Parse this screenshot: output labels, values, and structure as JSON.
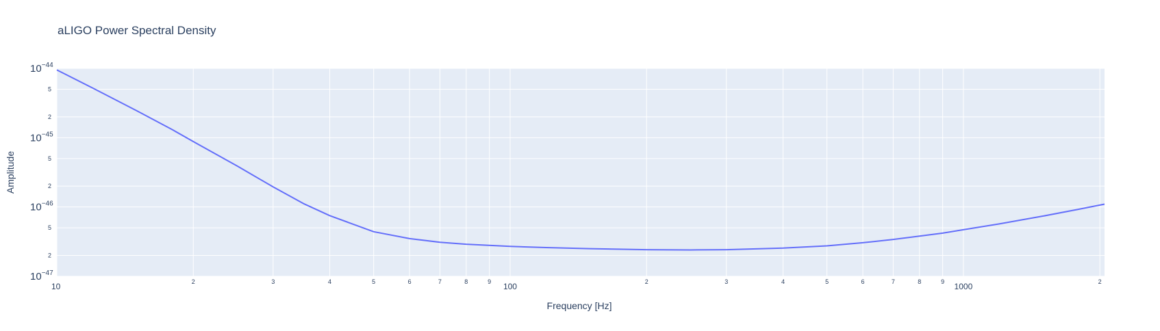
{
  "chart_data": {
    "type": "line",
    "title": "aLIGO Power Spectral Density",
    "xlabel": "Frequency [Hz]",
    "ylabel": "Amplitude",
    "x_scale": "log",
    "y_scale": "log",
    "xlim": [
      10,
      2048
    ],
    "ylim": [
      1e-47,
      1e-44
    ],
    "grid": true,
    "legend": "none",
    "colors": {
      "plot_bg": "#e5ecf6",
      "grid": "#ffffff",
      "line": "#636efa",
      "text": "#2a3f5f"
    },
    "x_ticks": {
      "major": [
        {
          "value": 10,
          "label": "10"
        },
        {
          "value": 100,
          "label": "100"
        },
        {
          "value": 1000,
          "label": "1000"
        }
      ],
      "minor": [
        {
          "value": 20,
          "label": "2"
        },
        {
          "value": 30,
          "label": "3"
        },
        {
          "value": 40,
          "label": "4"
        },
        {
          "value": 50,
          "label": "5"
        },
        {
          "value": 60,
          "label": "6"
        },
        {
          "value": 70,
          "label": "7"
        },
        {
          "value": 80,
          "label": "8"
        },
        {
          "value": 90,
          "label": "9"
        },
        {
          "value": 200,
          "label": "2"
        },
        {
          "value": 300,
          "label": "3"
        },
        {
          "value": 400,
          "label": "4"
        },
        {
          "value": 500,
          "label": "5"
        },
        {
          "value": 600,
          "label": "6"
        },
        {
          "value": 700,
          "label": "7"
        },
        {
          "value": 800,
          "label": "8"
        },
        {
          "value": 900,
          "label": "9"
        },
        {
          "value": 2000,
          "label": "2"
        }
      ]
    },
    "y_ticks": {
      "major": [
        {
          "value": 1e-44,
          "base": "10",
          "exp": "−44"
        },
        {
          "value": 1e-45,
          "base": "10",
          "exp": "−45"
        },
        {
          "value": 1e-46,
          "base": "10",
          "exp": "−46"
        },
        {
          "value": 1e-47,
          "base": "10",
          "exp": "−47"
        }
      ],
      "minor": [
        {
          "value": 5e-45,
          "label": "5"
        },
        {
          "value": 2e-45,
          "label": "2"
        },
        {
          "value": 5e-46,
          "label": "5"
        },
        {
          "value": 2e-46,
          "label": "2"
        },
        {
          "value": 5e-47,
          "label": "5"
        },
        {
          "value": 2e-47,
          "label": "2"
        }
      ]
    },
    "series": [
      {
        "x": [
          10,
          12,
          15,
          18,
          20,
          25,
          30,
          35,
          40,
          50,
          60,
          70,
          80,
          100,
          120,
          150,
          200,
          250,
          300,
          400,
          500,
          600,
          700,
          800,
          900,
          1000,
          1200,
          1500,
          1800,
          2048
        ],
        "y": [
          9.5e-45,
          5.2e-45,
          2.45e-45,
          1.3e-45,
          8.8e-46,
          3.9e-46,
          1.95e-46,
          1.12e-46,
          7.5e-47,
          4.4e-47,
          3.5e-47,
          3.1e-47,
          2.9e-47,
          2.7e-47,
          2.6e-47,
          2.5e-47,
          2.42e-47,
          2.4e-47,
          2.42e-47,
          2.55e-47,
          2.75e-47,
          3.05e-47,
          3.4e-47,
          3.8e-47,
          4.2e-47,
          4.7e-47,
          5.7e-47,
          7.4e-47,
          9.3e-47,
          1.1e-46
        ]
      }
    ]
  }
}
